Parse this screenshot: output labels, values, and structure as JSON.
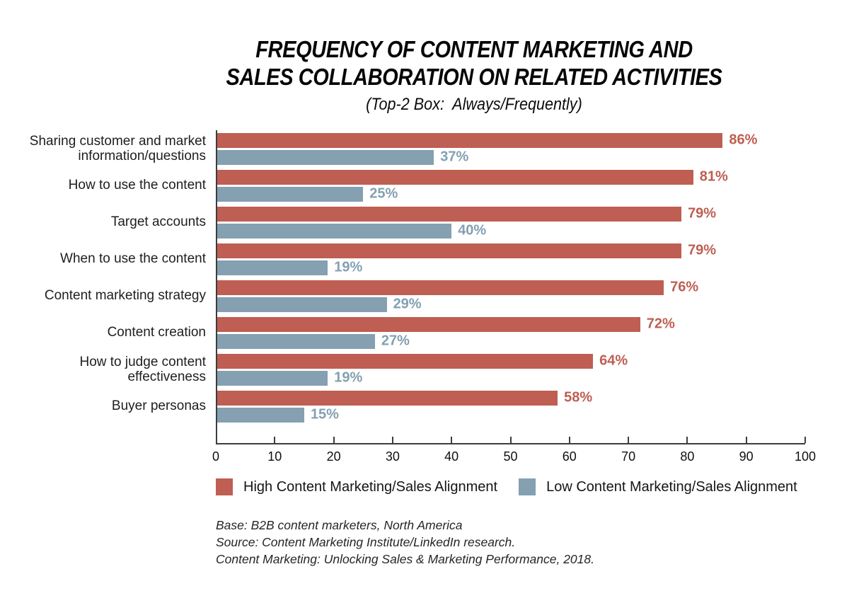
{
  "chart": {
    "title_lines": [
      "FREQUENCY OF CONTENT MARKETING AND",
      "SALES COLLABORATION ON RELATED ACTIVITIES"
    ],
    "subtitle": "(Top-2 Box:  Always/Frequently)"
  },
  "chart_data": {
    "type": "bar",
    "orientation": "horizontal",
    "title": "Frequency of Content Marketing and Sales Collaboration on Related Activities",
    "subtitle": "(Top-2 Box: Always/Frequently)",
    "categories": [
      "Sharing customer and market\ninformation/questions",
      "How to use the content",
      "Target accounts",
      "When to use the content",
      "Content marketing strategy",
      "Content creation",
      "How to judge content\neffectiveness",
      "Buyer personas"
    ],
    "series": [
      {
        "name": "High Content Marketing/Sales Alignment",
        "color": "#bf5e52",
        "values": [
          86,
          81,
          79,
          79,
          76,
          72,
          64,
          58
        ]
      },
      {
        "name": "Low Content Marketing/Sales Alignment",
        "color": "#84a0b1",
        "values": [
          37,
          25,
          40,
          19,
          29,
          27,
          19,
          15
        ]
      }
    ],
    "value_suffix": "%",
    "xlim": [
      0,
      100
    ],
    "x_ticks": [
      0,
      10,
      20,
      30,
      40,
      50,
      60,
      70,
      80,
      90,
      100
    ],
    "grid": false,
    "legend_position": "bottom",
    "axis_color": "#3d3d3d"
  },
  "footer": {
    "lines": [
      "Base: B2B content marketers, North America",
      "Source: Content Marketing Institute/LinkedIn research.",
      "Content Marketing: Unlocking Sales & Marketing Performance, 2018."
    ]
  }
}
